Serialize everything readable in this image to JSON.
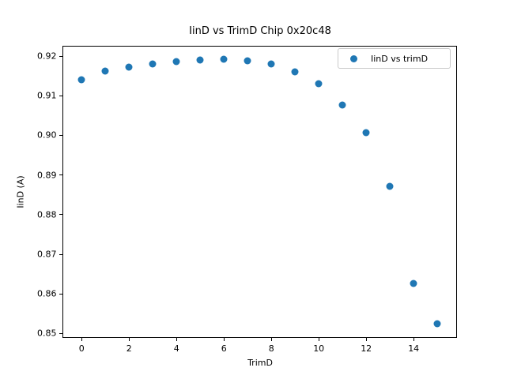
{
  "chart_data": {
    "type": "scatter",
    "title": "IinD vs TrimD Chip 0x20c48",
    "xlabel": "TrimD",
    "ylabel": "IinD (A)",
    "series": [
      {
        "name": "IinD vs trimD",
        "marker": "circle",
        "color": "#1f77b4",
        "x": [
          0,
          1,
          2,
          3,
          4,
          5,
          6,
          7,
          8,
          9,
          10,
          11,
          12,
          13,
          14,
          15
        ],
        "y": [
          0.914,
          0.9162,
          0.9172,
          0.9181,
          0.9186,
          0.9191,
          0.9192,
          0.9188,
          0.918,
          0.9161,
          0.913,
          0.9077,
          0.9007,
          0.8871,
          0.8627,
          0.8524
        ]
      }
    ],
    "xlim": [
      -0.79,
      15.81
    ],
    "ylim": [
      0.849,
      0.9225
    ],
    "xticks": [
      0,
      2,
      4,
      6,
      8,
      10,
      12,
      14
    ],
    "yticks": [
      0.85,
      0.86,
      0.87,
      0.88,
      0.89,
      0.9,
      0.91,
      0.92
    ],
    "grid": false,
    "legend": {
      "position": "upper right",
      "entries": [
        "IinD vs trimD"
      ]
    },
    "axis_color": "#000000",
    "background_color": "#ffffff"
  }
}
